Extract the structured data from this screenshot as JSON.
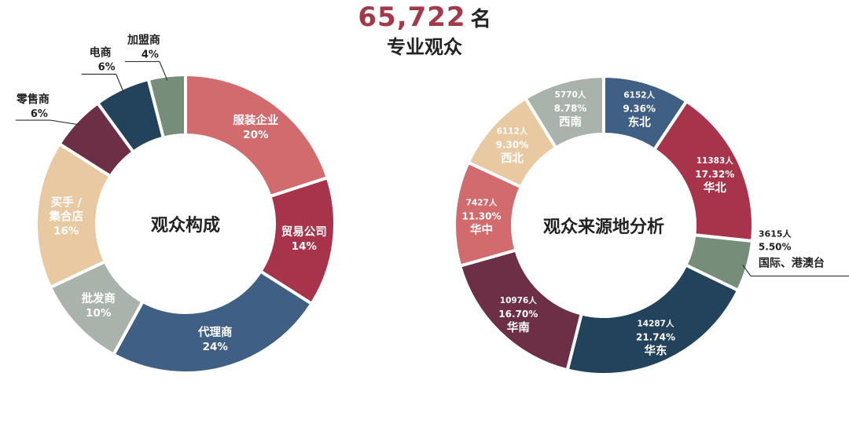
{
  "headline": {
    "number": "65,722",
    "unit": "名",
    "subtitle": "专业观众"
  },
  "chart_data": [
    {
      "type": "pie",
      "title": "观众构成",
      "start_deg": 0,
      "slices": [
        {
          "name": "服装企业",
          "percent": "20%",
          "value": 20,
          "color": "#d16b6e",
          "pos": "inside"
        },
        {
          "name": "贸易公司",
          "percent": "14%",
          "value": 14,
          "color": "#a8344b",
          "pos": "inside"
        },
        {
          "name": "代理商",
          "percent": "24%",
          "value": 24,
          "color": "#3f5f84",
          "pos": "inside"
        },
        {
          "name": "批发商",
          "percent": "10%",
          "value": 10,
          "color": "#a9b2ab",
          "pos": "inside"
        },
        {
          "name": "买手 / 集合店",
          "lines": [
            "买手 /",
            "集合店"
          ],
          "percent": "16%",
          "value": 16,
          "color": "#e8c9a2",
          "pos": "inside"
        },
        {
          "name": "零售商",
          "percent": "6%",
          "value": 6,
          "color": "#6c2f45",
          "pos": "outside-left"
        },
        {
          "name": "电商",
          "percent": "6%",
          "value": 6,
          "color": "#23425b",
          "pos": "outside-top"
        },
        {
          "name": "加盟商",
          "percent": "4%",
          "value": 4,
          "color": "#768d7a",
          "pos": "outside-top"
        }
      ]
    },
    {
      "type": "pie",
      "title": "观众来源地分析",
      "start_deg": 0,
      "slices": [
        {
          "name": "东北",
          "count": "6152人",
          "percent": "9.36%",
          "value": 9.36,
          "color": "#3f5f84",
          "pos": "inside"
        },
        {
          "name": "华北",
          "count": "11383人",
          "percent": "17.32%",
          "value": 17.32,
          "color": "#a8344b",
          "pos": "inside"
        },
        {
          "name": "国际、港澳台",
          "count": "3615人",
          "percent": "5.50%",
          "value": 5.5,
          "color": "#768d7a",
          "pos": "outside-right"
        },
        {
          "name": "华东",
          "count": "14287人",
          "percent": "21.74%",
          "value": 21.74,
          "color": "#23425b",
          "pos": "inside"
        },
        {
          "name": "华南",
          "count": "10976人",
          "percent": "16.70%",
          "value": 16.7,
          "color": "#6c2f45",
          "pos": "inside"
        },
        {
          "name": "华中",
          "count": "7427人",
          "percent": "11.30%",
          "value": 11.3,
          "color": "#d16b6e",
          "pos": "inside"
        },
        {
          "name": "西北",
          "count": "6112人",
          "percent": "9.30%",
          "value": 9.3,
          "color": "#e8c9a2",
          "pos": "inside"
        },
        {
          "name": "西南",
          "count": "5770人",
          "percent": "8.78%",
          "value": 8.78,
          "color": "#a9b2ab",
          "pos": "inside"
        }
      ]
    }
  ]
}
